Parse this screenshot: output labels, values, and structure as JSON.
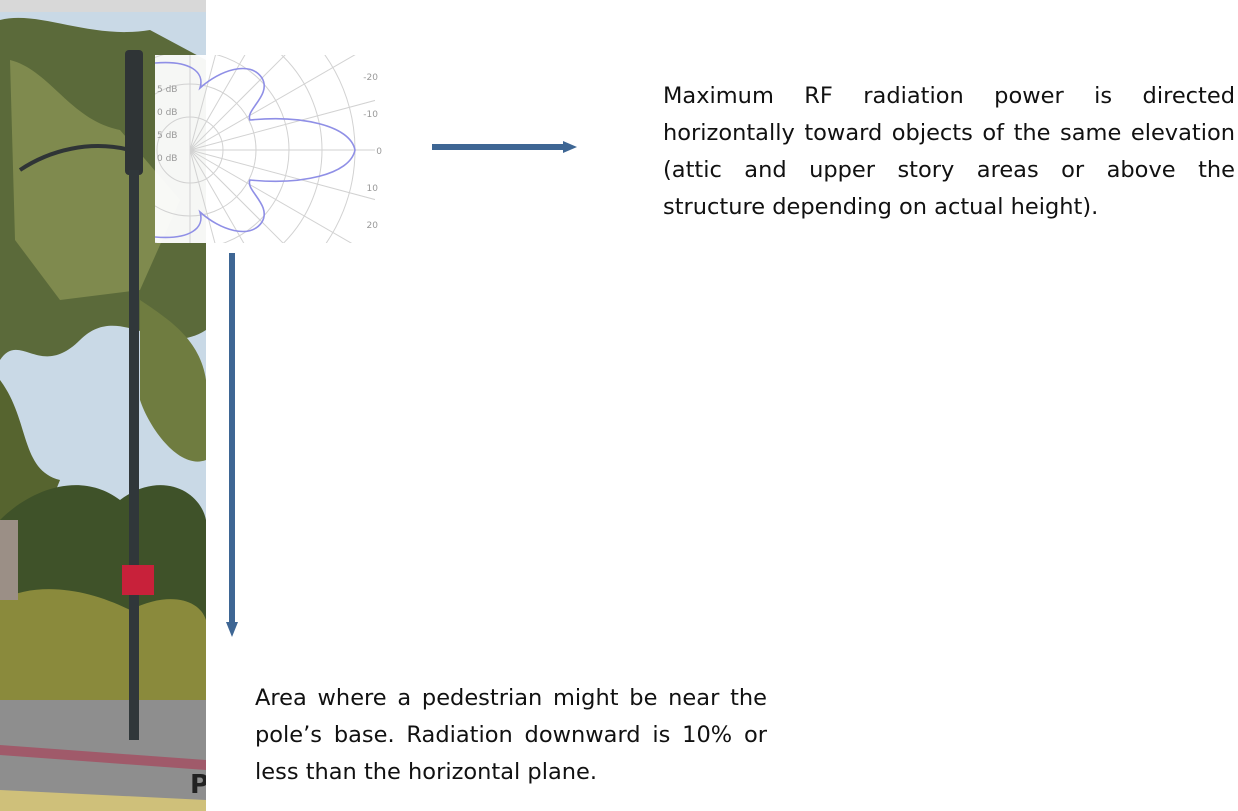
{
  "polar_plot": {
    "right_labels": [
      "-20",
      "-10",
      "0",
      "10",
      "20"
    ],
    "left_labels": [
      "5 dB",
      "0 dB",
      "5 dB",
      "0 dB"
    ]
  },
  "photo": {
    "cut_letter": "P"
  },
  "notes": [
    "Maximum RF radiation power is directed horizontally toward objects of the same elevation (attic and upper story areas or above the structure depending on actual height).",
    "Area where a pedestrian might be near the pole’s base. Radiation downward is 10% or less than the horizontal plane."
  ]
}
